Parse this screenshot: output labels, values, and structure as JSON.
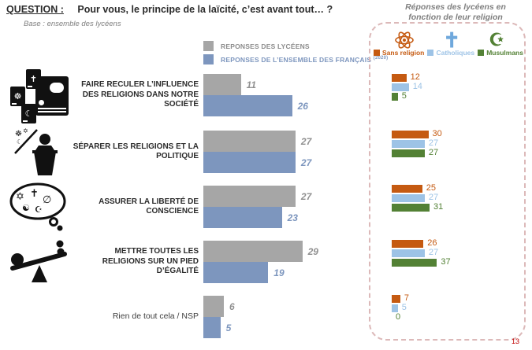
{
  "header": {
    "question_label": "QUESTION :",
    "question_title": "Pour vous, le principe de la laïcité, c’est avant tout… ?",
    "base_note": "Base : ensemble des lycéens"
  },
  "main_legend": {
    "lyceens_label": "REPONSES DES LYCÉENS",
    "francais_label": "REPONSES DE L’ENSEMBLE DES FRANÇAIS",
    "francais_superscript": "(2020)"
  },
  "side_panel": {
    "title_line1": "Réponses des lycéens en",
    "title_line2": "fonction de leur religion",
    "icons": [
      "atom-icon",
      "cross-icon",
      "crescent-icon"
    ],
    "crescent_glyph": "☪",
    "cross_glyph": "✝",
    "legend": [
      {
        "label": "Sans religion",
        "color": "#c55a11"
      },
      {
        "label": "Catholiques",
        "color": "#9dc3e6"
      },
      {
        "label": "Musulmans",
        "color": "#538135"
      }
    ]
  },
  "page_number": "13",
  "colors": {
    "lyceens_gray": "#a6a6a6",
    "francais_blue": "#7d96be",
    "sans_religion_orange": "#c55a11",
    "catholiques_blue": "#9dc3e6",
    "musulmans_green": "#538135",
    "panel_border": "#dcb9b9",
    "page_number_red": "#c00000"
  },
  "chart_data": [
    {
      "type": "bar",
      "orientation": "horizontal",
      "title": "Pour vous, le principe de la laïcité, c’est avant tout… ?",
      "subtitle": "Base : ensemble des lycéens",
      "categories": [
        "FAIRE RECULER L’INFLUENCE DES RELIGIONS DANS NOTRE SOCIÉTÉ",
        "SÉPARER LES RELIGIONS ET LA POLITIQUE",
        "ASSURER LA LIBERTÉ DE CONSCIENCE",
        "METTRE TOUTES LES RELIGIONS SUR UN PIED D’ÉGALITÉ",
        "Rien de tout cela / NSP"
      ],
      "series": [
        {
          "name": "REPONSES DES LYCÉENS",
          "color": "#a6a6a6",
          "values": [
            11,
            27,
            27,
            29,
            6
          ]
        },
        {
          "name": "REPONSES DE L’ENSEMBLE DES FRANÇAIS (2020)",
          "color": "#7d96be",
          "values": [
            26,
            27,
            23,
            19,
            5
          ]
        }
      ],
      "xlim": [
        0,
        32
      ],
      "value_labels": true,
      "grid": false,
      "legend_position": "top"
    },
    {
      "type": "bar",
      "orientation": "horizontal",
      "title": "Réponses des lycéens en fonction de leur religion",
      "categories": [
        "FAIRE RECULER L’INFLUENCE DES RELIGIONS DANS NOTRE SOCIÉTÉ",
        "SÉPARER LES RELIGIONS ET LA POLITIQUE",
        "ASSURER LA LIBERTÉ DE CONSCIENCE",
        "METTRE TOUTES LES RELIGIONS SUR UN PIED D’ÉGALITÉ",
        "Rien de tout cela / NSP"
      ],
      "series": [
        {
          "name": "Sans religion",
          "color": "#c55a11",
          "values": [
            12,
            30,
            25,
            26,
            7
          ]
        },
        {
          "name": "Catholiques",
          "color": "#9dc3e6",
          "values": [
            14,
            27,
            27,
            27,
            5
          ]
        },
        {
          "name": "Musulmans",
          "color": "#538135",
          "values": [
            5,
            27,
            31,
            37,
            0
          ]
        }
      ],
      "xlim": [
        0,
        40
      ],
      "value_labels": true,
      "grid": false,
      "legend_position": "top"
    }
  ]
}
